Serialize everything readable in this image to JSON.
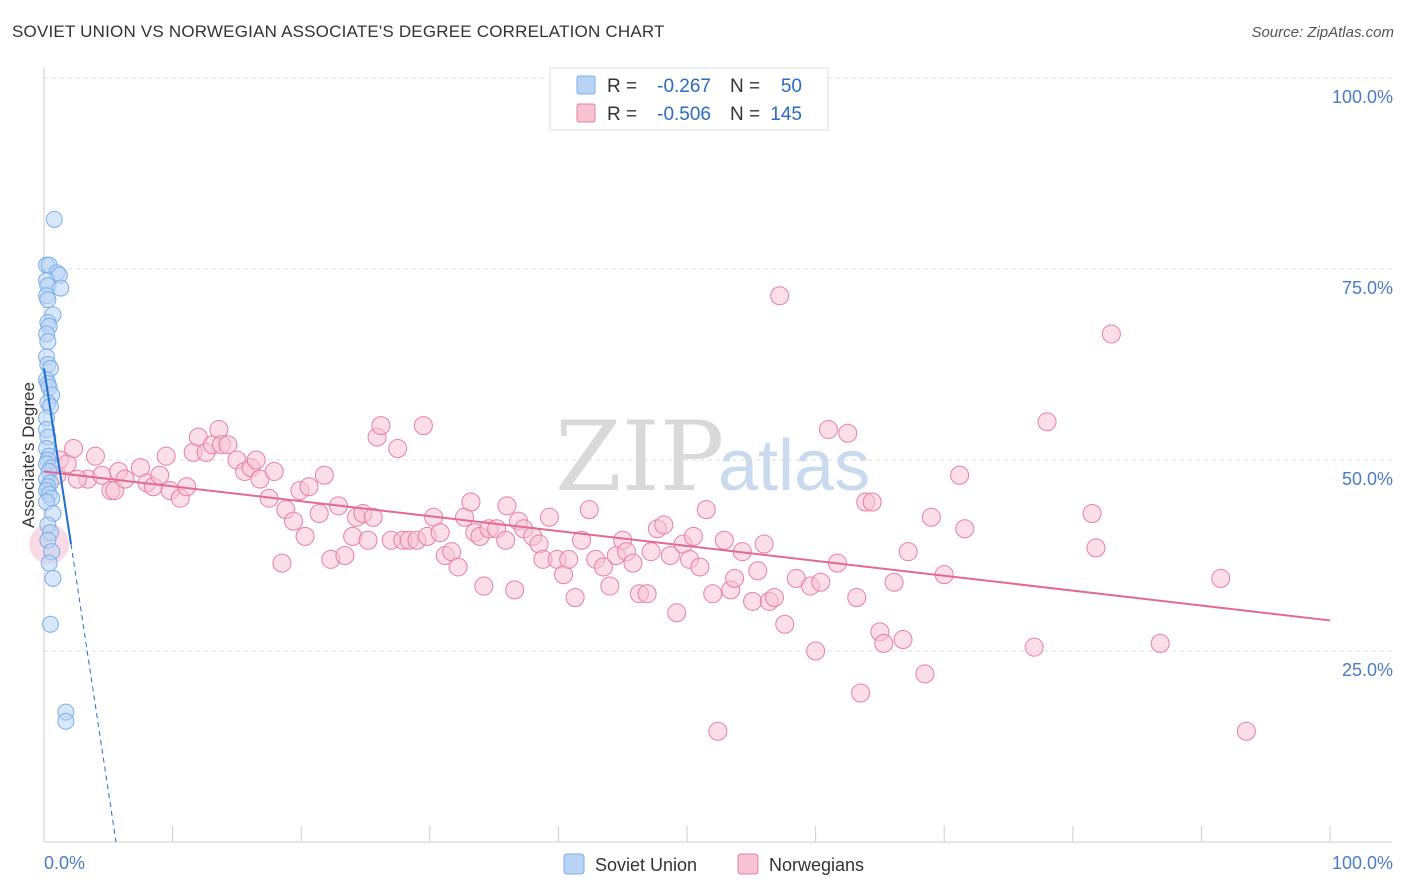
{
  "header": {
    "title": "SOVIET UNION VS NORWEGIAN ASSOCIATE'S DEGREE CORRELATION CHART",
    "source": "Source: ZipAtlas.com"
  },
  "colors": {
    "soviet": "#7aaee8",
    "soviet_fill": "#b9d3f5",
    "soviet_line": "#1f6fd1",
    "norwegian": "#e97fa0",
    "norwegian_fill": "#f7c3d3",
    "norwegian_line": "#e06a92",
    "tick_label": "#4a7cc6",
    "grid": "#dddddd"
  },
  "legend": {
    "rows": [
      {
        "r_label": "R =",
        "r_value": "-0.267",
        "n_label": "N =",
        "n_value": "50"
      },
      {
        "r_label": "R =",
        "r_value": "-0.506",
        "n_label": "N =",
        "n_value": "145"
      }
    ]
  },
  "bottom_legend": [
    "Soviet Union",
    "Norwegians"
  ],
  "watermark": {
    "zip": "ZIP",
    "atlas": "atlas"
  },
  "chart_data": {
    "type": "scatter",
    "ylabel": "Associate's Degree",
    "x_tick_labels": [
      "0.0%",
      "100.0%"
    ],
    "y_tick_labels": [
      "100.0%",
      "75.0%",
      "50.0%",
      "25.0%"
    ],
    "y_ticks": [
      100,
      75,
      50,
      25
    ],
    "xlim": [
      0,
      100
    ],
    "ylim": [
      0,
      100
    ],
    "grid": "horizontal dashed",
    "legend_position": "top-center",
    "series": [
      {
        "name": "Soviet Union",
        "r": -0.267,
        "n": 50,
        "trend": {
          "x0": 0,
          "y0": 62,
          "x1": 2.1,
          "y1": 39,
          "dashed_to_x": 5.6,
          "dashed_to_y": 0
        },
        "points": [
          [
            0.8,
            81.5
          ],
          [
            0.2,
            75.5
          ],
          [
            0.4,
            75.5
          ],
          [
            1.0,
            74.5
          ],
          [
            1.2,
            74.2
          ],
          [
            0.2,
            73.5
          ],
          [
            0.3,
            72.8
          ],
          [
            1.3,
            72.5
          ],
          [
            0.2,
            71.5
          ],
          [
            0.3,
            71.0
          ],
          [
            0.7,
            69.0
          ],
          [
            0.3,
            68.0
          ],
          [
            0.4,
            67.5
          ],
          [
            0.2,
            66.5
          ],
          [
            0.3,
            65.5
          ],
          [
            0.2,
            63.5
          ],
          [
            0.3,
            62.5
          ],
          [
            0.5,
            62.0
          ],
          [
            0.2,
            60.5
          ],
          [
            0.3,
            60.0
          ],
          [
            0.4,
            59.5
          ],
          [
            0.6,
            58.5
          ],
          [
            0.3,
            57.5
          ],
          [
            0.5,
            57.0
          ],
          [
            0.2,
            55.5
          ],
          [
            0.2,
            54.0
          ],
          [
            0.3,
            53.0
          ],
          [
            0.2,
            51.5
          ],
          [
            0.4,
            50.5
          ],
          [
            0.3,
            50.0
          ],
          [
            0.2,
            49.5
          ],
          [
            0.6,
            49.0
          ],
          [
            0.4,
            48.5
          ],
          [
            0.2,
            47.5
          ],
          [
            0.5,
            47.0
          ],
          [
            0.3,
            46.5
          ],
          [
            0.2,
            46.0
          ],
          [
            0.4,
            45.5
          ],
          [
            0.6,
            45.0
          ],
          [
            0.2,
            44.5
          ],
          [
            0.7,
            43.0
          ],
          [
            0.3,
            41.5
          ],
          [
            0.5,
            40.5
          ],
          [
            0.3,
            39.5
          ],
          [
            0.6,
            38.0
          ],
          [
            0.4,
            36.5
          ],
          [
            0.7,
            34.5
          ],
          [
            0.5,
            28.5
          ],
          [
            1.7,
            17.0
          ],
          [
            1.7,
            15.8
          ]
        ]
      },
      {
        "name": "Norwegians",
        "r": -0.506,
        "n": 145,
        "trend": {
          "x0": 0,
          "y0": 48.5,
          "x1": 100,
          "y1": 29
        },
        "points": [
          [
            1.2,
            50.0
          ],
          [
            1.0,
            48.0
          ],
          [
            1.8,
            49.5
          ],
          [
            2.3,
            51.5
          ],
          [
            3.4,
            47.5
          ],
          [
            2.6,
            47.5
          ],
          [
            4.0,
            50.5
          ],
          [
            4.5,
            48.0
          ],
          [
            5.2,
            46.0
          ],
          [
            5.5,
            46.0
          ],
          [
            5.8,
            48.5
          ],
          [
            6.3,
            47.5
          ],
          [
            7.5,
            49.0
          ],
          [
            8.0,
            47.0
          ],
          [
            8.5,
            46.5
          ],
          [
            9.0,
            48.0
          ],
          [
            9.5,
            50.5
          ],
          [
            9.8,
            46.0
          ],
          [
            10.6,
            45.0
          ],
          [
            11.1,
            46.5
          ],
          [
            11.6,
            51.0
          ],
          [
            12.0,
            53.0
          ],
          [
            12.6,
            51.0
          ],
          [
            13.1,
            52.0
          ],
          [
            13.6,
            54.0
          ],
          [
            13.8,
            52.0
          ],
          [
            14.3,
            52.0
          ],
          [
            15.0,
            50.0
          ],
          [
            15.6,
            48.5
          ],
          [
            16.1,
            49.0
          ],
          [
            16.5,
            50.0
          ],
          [
            16.8,
            47.5
          ],
          [
            17.5,
            45.0
          ],
          [
            17.9,
            48.5
          ],
          [
            18.5,
            36.5
          ],
          [
            18.8,
            43.5
          ],
          [
            19.4,
            42.0
          ],
          [
            19.9,
            46.0
          ],
          [
            20.3,
            40.0
          ],
          [
            20.6,
            46.5
          ],
          [
            21.4,
            43.0
          ],
          [
            21.8,
            48.0
          ],
          [
            22.3,
            37.0
          ],
          [
            22.9,
            44.0
          ],
          [
            23.4,
            37.5
          ],
          [
            24.0,
            40.0
          ],
          [
            24.3,
            42.5
          ],
          [
            24.8,
            43.0
          ],
          [
            25.2,
            39.5
          ],
          [
            25.6,
            42.5
          ],
          [
            25.9,
            53.0
          ],
          [
            26.2,
            54.5
          ],
          [
            27.0,
            39.5
          ],
          [
            27.5,
            51.5
          ],
          [
            27.9,
            39.5
          ],
          [
            28.4,
            39.5
          ],
          [
            29.0,
            39.5
          ],
          [
            29.5,
            54.5
          ],
          [
            29.8,
            40.0
          ],
          [
            30.3,
            42.5
          ],
          [
            30.8,
            40.5
          ],
          [
            31.2,
            37.5
          ],
          [
            31.7,
            38.0
          ],
          [
            32.2,
            36.0
          ],
          [
            32.7,
            42.5
          ],
          [
            33.2,
            44.5
          ],
          [
            33.5,
            40.5
          ],
          [
            33.9,
            40.0
          ],
          [
            34.2,
            33.5
          ],
          [
            34.6,
            41.0
          ],
          [
            35.2,
            41.0
          ],
          [
            35.9,
            39.5
          ],
          [
            36.0,
            44.0
          ],
          [
            36.6,
            33.0
          ],
          [
            36.9,
            42.0
          ],
          [
            37.3,
            41.0
          ],
          [
            38.0,
            40.0
          ],
          [
            38.5,
            39.0
          ],
          [
            38.8,
            37.0
          ],
          [
            39.3,
            42.5
          ],
          [
            39.9,
            37.0
          ],
          [
            40.4,
            35.0
          ],
          [
            40.8,
            37.0
          ],
          [
            41.3,
            32.0
          ],
          [
            41.8,
            39.5
          ],
          [
            42.4,
            43.5
          ],
          [
            42.9,
            37.0
          ],
          [
            43.5,
            36.0
          ],
          [
            44.0,
            33.5
          ],
          [
            44.5,
            37.5
          ],
          [
            45.0,
            39.5
          ],
          [
            45.3,
            38.0
          ],
          [
            45.8,
            36.5
          ],
          [
            46.3,
            32.5
          ],
          [
            46.9,
            32.5
          ],
          [
            47.2,
            38.0
          ],
          [
            47.7,
            41.0
          ],
          [
            48.2,
            41.5
          ],
          [
            48.7,
            37.5
          ],
          [
            49.2,
            30.0
          ],
          [
            49.7,
            39.0
          ],
          [
            50.2,
            37.0
          ],
          [
            50.5,
            40.0
          ],
          [
            51.0,
            36.0
          ],
          [
            51.5,
            43.5
          ],
          [
            52.0,
            32.5
          ],
          [
            52.4,
            14.5
          ],
          [
            52.9,
            39.5
          ],
          [
            53.4,
            33.0
          ],
          [
            53.7,
            34.5
          ],
          [
            54.3,
            38.0
          ],
          [
            55.1,
            31.5
          ],
          [
            55.5,
            35.5
          ],
          [
            56.0,
            39.0
          ],
          [
            56.4,
            31.5
          ],
          [
            56.8,
            32.0
          ],
          [
            57.2,
            71.5
          ],
          [
            57.6,
            28.5
          ],
          [
            58.5,
            34.5
          ],
          [
            59.6,
            33.5
          ],
          [
            60.0,
            25.0
          ],
          [
            60.4,
            34.0
          ],
          [
            61.0,
            54.0
          ],
          [
            61.7,
            36.5
          ],
          [
            62.5,
            53.5
          ],
          [
            63.2,
            32.0
          ],
          [
            63.5,
            19.5
          ],
          [
            63.9,
            44.5
          ],
          [
            64.4,
            44.5
          ],
          [
            65.0,
            27.5
          ],
          [
            65.3,
            26.0
          ],
          [
            66.1,
            34.0
          ],
          [
            66.8,
            26.5
          ],
          [
            67.2,
            38.0
          ],
          [
            68.5,
            22.0
          ],
          [
            69.0,
            42.5
          ],
          [
            70.0,
            35.0
          ],
          [
            71.2,
            48.0
          ],
          [
            71.6,
            41.0
          ],
          [
            77.0,
            25.5
          ],
          [
            78.0,
            55.0
          ],
          [
            81.5,
            43.0
          ],
          [
            81.8,
            38.5
          ],
          [
            83.0,
            66.5
          ],
          [
            86.8,
            26.0
          ],
          [
            91.5,
            34.5
          ],
          [
            93.5,
            14.5
          ]
        ]
      }
    ]
  }
}
